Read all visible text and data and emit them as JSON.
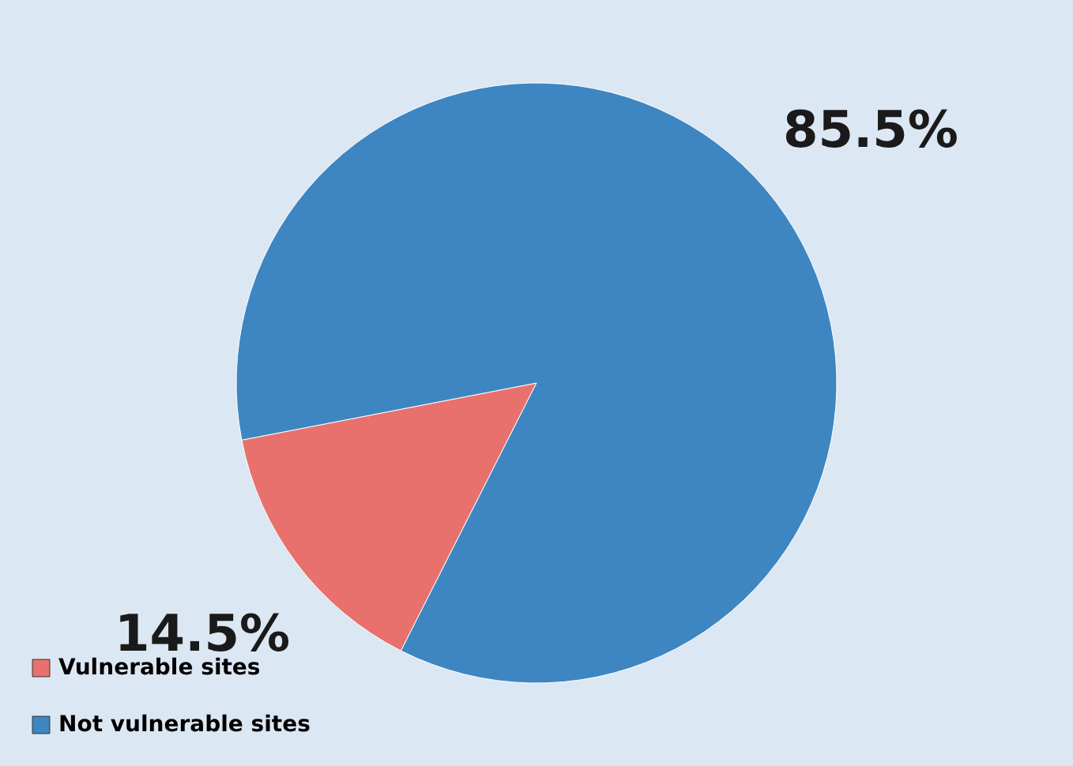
{
  "chart_data": {
    "type": "pie",
    "categories": [
      "Vulnerable sites",
      "Not vulnerable sites"
    ],
    "values": [
      14.5,
      85.5
    ],
    "colors": [
      "#e8716d",
      "#3e86c1"
    ],
    "value_labels": [
      "14.5%",
      "85.5%"
    ],
    "legend": "bottom left"
  }
}
